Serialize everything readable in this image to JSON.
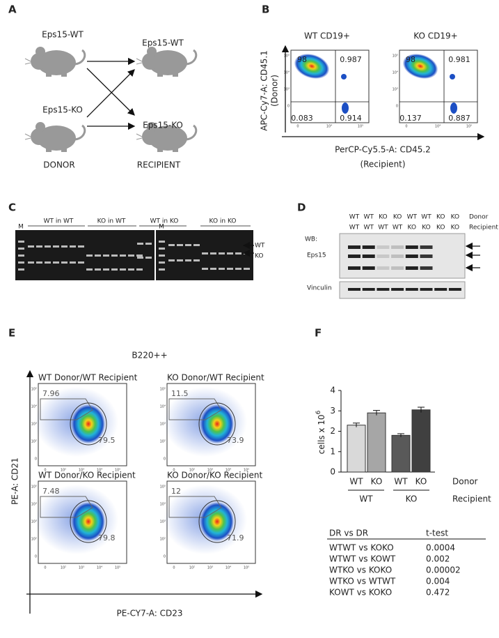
{
  "panel_labels": [
    "A",
    "B",
    "C",
    "D",
    "E",
    "F"
  ],
  "panel_a": {
    "donor_labels": [
      "Eps15-WT",
      "Eps15-KO"
    ],
    "recipient_labels": [
      "Eps15-WT",
      "Eps15-KO"
    ],
    "donor": "DONOR",
    "recipient": "RECIPIENT"
  },
  "panel_b": {
    "plots": [
      {
        "title": "WT CD19+",
        "quadrants": [
          "98",
          "0.987",
          "0.083",
          "0.914"
        ]
      },
      {
        "title": "KO CD19+",
        "quadrants": [
          "98",
          "0.981",
          "0.137",
          "0.887"
        ]
      }
    ],
    "y_label": [
      "APC-Cy7-A: CD45.1",
      "(Donor)"
    ],
    "x_label": [
      "PerCP-Cy5.5-A: CD45.2",
      "(Recipient)"
    ],
    "y_ticks": [
      "10⁵",
      "10⁴",
      "10³",
      "0"
    ],
    "x_ticks": [
      "0",
      "10⁴",
      "10⁵"
    ]
  },
  "panel_c": {
    "lane_groups": [
      "WT in WT",
      "KO in WT",
      "WT in KO",
      "KO in KO"
    ],
    "markers": [
      "M",
      "M"
    ],
    "bands": [
      "WT",
      "KO"
    ]
  },
  "panel_d": {
    "donor_row": [
      "WT",
      "WT",
      "KO",
      "KO",
      "WT",
      "WT",
      "KO",
      "KO"
    ],
    "recipient_row": [
      "WT",
      "WT",
      "WT",
      "WT",
      "KO",
      "KO",
      "KO",
      "KO"
    ],
    "row_labels": [
      "Donor",
      "Recipient"
    ],
    "wb": "WB:",
    "blots": [
      "Eps15",
      "Vinculin"
    ]
  },
  "panel_e": {
    "gate": "B220++",
    "plots": [
      {
        "title": "WT Donor/WT Recipient",
        "gate_pct": "7.96",
        "main_pct": "79.5"
      },
      {
        "title": "KO Donor/WT Recipient",
        "gate_pct": "11.5",
        "main_pct": "73.9"
      },
      {
        "title": "WT Donor/KO Recipient",
        "gate_pct": "7.48",
        "main_pct": "79.8"
      },
      {
        "title": "KO Donor/KO Recipient",
        "gate_pct": "12",
        "main_pct": "71.9"
      }
    ],
    "y_label": "PE-A: CD21",
    "x_label": "PE-CY7-A: CD23",
    "y_ticks": [
      "10⁵",
      "10⁴",
      "10³",
      "10²",
      "0"
    ],
    "x_ticks": [
      "0",
      "10²",
      "10³",
      "10⁴",
      "10⁵"
    ]
  },
  "chart_data": {
    "type": "bar",
    "y_label": "cells x 10",
    "y_label_sup": "6",
    "categories": [
      "WT",
      "KO",
      "WT",
      "KO"
    ],
    "values": [
      2.3,
      2.9,
      1.8,
      3.05
    ],
    "errors": [
      0.1,
      0.12,
      0.08,
      0.13
    ],
    "colors": [
      "#d9d9d9",
      "#a6a6a6",
      "#595959",
      "#404040"
    ],
    "category_axis": "Donor",
    "groups": [
      "WT",
      "KO"
    ],
    "group_axis": "Recipient",
    "ylim": [
      0,
      4
    ],
    "yticks": [
      0,
      1,
      2,
      3,
      4
    ]
  },
  "table": {
    "header": [
      "DR vs DR",
      "t-test"
    ],
    "rows": [
      [
        "WTWT vs KOKO",
        "0.0004"
      ],
      [
        "WTWT vs KOWT",
        "0.002"
      ],
      [
        "WTKO vs KOKO",
        "0.00002"
      ],
      [
        "WTKO vs WTWT",
        "0.004"
      ],
      [
        "KOWT vs KOKO",
        "0.472"
      ]
    ]
  }
}
